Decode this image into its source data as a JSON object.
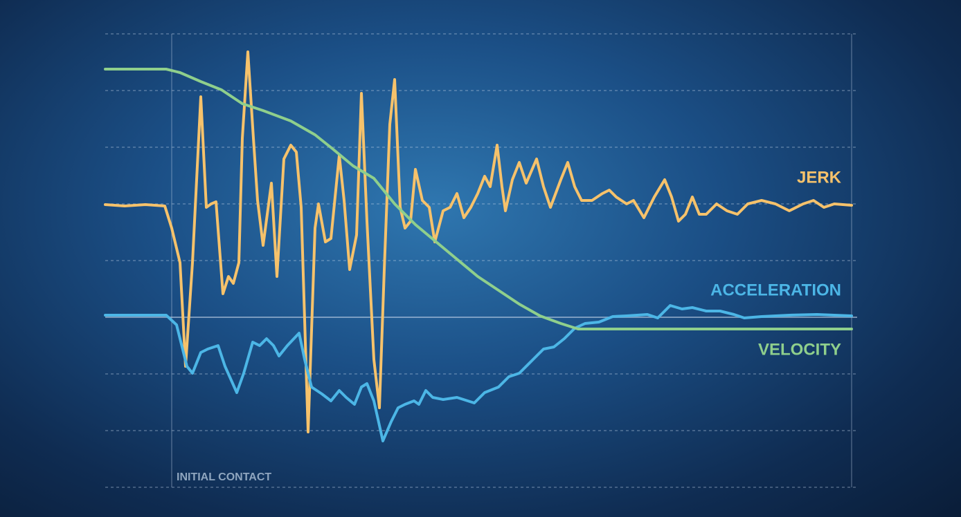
{
  "chart_data": {
    "type": "line",
    "xlim": [
      0,
      1078
    ],
    "ylim": [
      -246,
      410
    ],
    "yticks": [
      -246,
      -164,
      -82,
      0,
      82,
      164,
      246,
      328,
      410
    ],
    "grid": true,
    "annotation": {
      "label": "INITIAL CONTACT",
      "x": 96
    },
    "series": [
      {
        "name": "JERK",
        "color": "#f6c26b",
        "x": [
          0,
          28,
          58,
          86,
          96,
          108,
          116,
          126,
          138,
          146,
          153,
          160,
          170,
          178,
          185,
          193,
          198,
          206,
          214,
          220,
          228,
          240,
          248,
          258,
          268,
          276,
          283,
          293,
          303,
          308,
          318,
          326,
          338,
          345,
          353,
          363,
          370,
          378,
          388,
          396,
          403,
          411,
          418,
          426,
          433,
          441,
          448,
          458,
          468,
          476,
          488,
          498,
          508,
          518,
          528,
          538,
          548,
          556,
          566,
          573,
          578,
          588,
          598,
          608,
          623,
          633,
          643,
          658,
          668,
          678,
          688,
          703,
          718,
          728,
          738,
          753,
          763,
          778,
          793,
          808,
          818,
          828,
          838,
          848,
          858,
          868,
          883,
          898,
          913,
          928,
          948,
          968,
          988,
          1008,
          1023,
          1038,
          1053,
          1078
        ],
        "values": [
          163,
          161,
          163,
          161,
          129,
          79,
          -71,
          79,
          319,
          159,
          164,
          167,
          34,
          59,
          49,
          79,
          259,
          384,
          259,
          169,
          104,
          194,
          59,
          229,
          249,
          239,
          159,
          -166,
          129,
          164,
          109,
          114,
          234,
          169,
          69,
          119,
          324,
          139,
          -61,
          -131,
          69,
          279,
          344,
          159,
          129,
          139,
          214,
          169,
          159,
          109,
          154,
          159,
          179,
          144,
          159,
          179,
          204,
          189,
          249,
          189,
          154,
          199,
          224,
          194,
          229,
          189,
          159,
          199,
          224,
          189,
          169,
          169,
          179,
          184,
          174,
          164,
          169,
          144,
          174,
          199,
          174,
          139,
          149,
          174,
          149,
          149,
          164,
          154,
          149,
          164,
          169,
          164,
          154,
          164,
          169,
          159,
          164,
          162
        ]
      },
      {
        "name": "ACCELERATION",
        "color": "#4cb6e6",
        "x": [
          0,
          88,
          103,
          118,
          126,
          138,
          148,
          163,
          173,
          190,
          200,
          213,
          223,
          233,
          243,
          251,
          263,
          280,
          288,
          298,
          313,
          326,
          338,
          348,
          360,
          370,
          378,
          388,
          401,
          413,
          423,
          433,
          446,
          453,
          463,
          473,
          488,
          508,
          533,
          548,
          568,
          583,
          598,
          618,
          633,
          648,
          663,
          678,
          693,
          713,
          733,
          753,
          783,
          798,
          816,
          833,
          848,
          868,
          888,
          908,
          923,
          948,
          988,
          1028,
          1078
        ],
        "values": [
          3,
          3,
          -11,
          -71,
          -81,
          -51,
          -46,
          -41,
          -71,
          -109,
          -81,
          -36,
          -41,
          -31,
          -41,
          -56,
          -41,
          -23,
          -61,
          -101,
          -111,
          -121,
          -106,
          -116,
          -126,
          -101,
          -96,
          -121,
          -179,
          -151,
          -131,
          -126,
          -121,
          -126,
          -106,
          -116,
          -119,
          -116,
          -124,
          -109,
          -101,
          -86,
          -81,
          -61,
          -46,
          -43,
          -31,
          -16,
          -9,
          -7,
          1,
          2,
          4,
          -1,
          17,
          12,
          14,
          9,
          9,
          4,
          -1,
          1,
          3,
          4,
          2
        ]
      },
      {
        "name": "VELOCITY",
        "color": "#8fcf8c",
        "x": [
          0,
          88,
          108,
          138,
          168,
          198,
          228,
          268,
          303,
          328,
          358,
          388,
          418,
          448,
          478,
          508,
          538,
          568,
          598,
          628,
          658,
          683,
          1078
        ],
        "values": [
          359,
          359,
          354,
          341,
          329,
          309,
          299,
          284,
          264,
          244,
          219,
          201,
          164,
          134,
          109,
          84,
          59,
          39,
          19,
          2,
          -9,
          -17,
          -17
        ]
      }
    ]
  }
}
